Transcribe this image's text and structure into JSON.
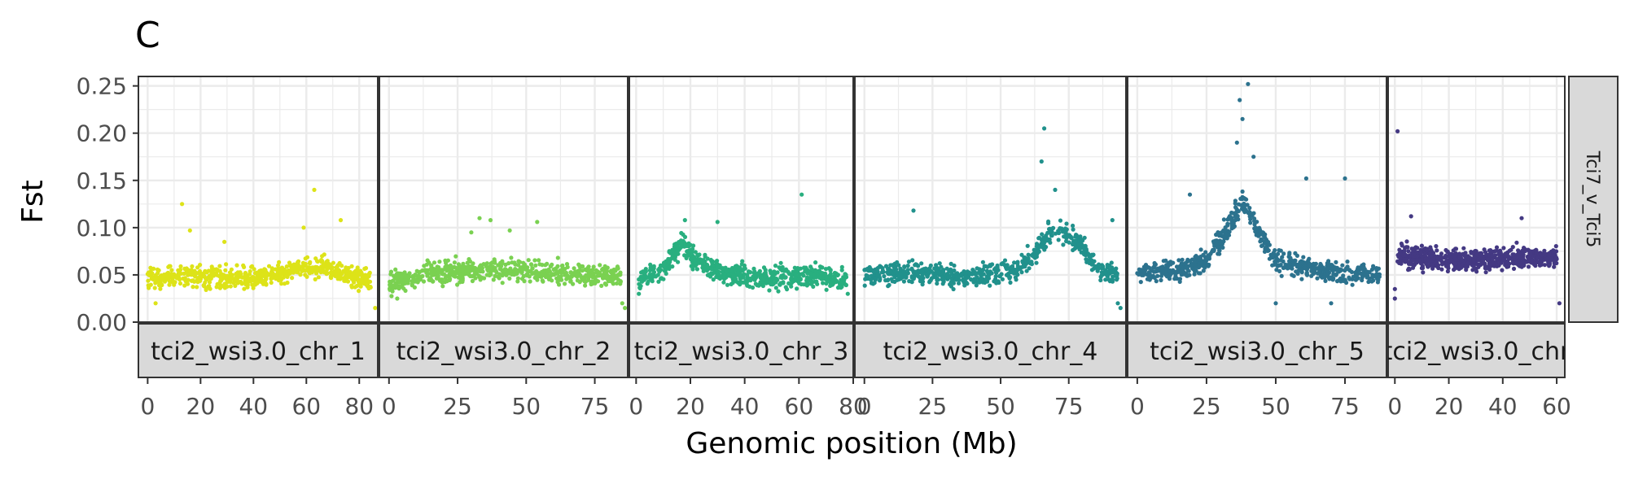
{
  "panel_tag": "C",
  "chart_data": {
    "type": "scatter",
    "xlabel": "Genomic position (Mb)",
    "ylabel": "Fst",
    "ylim": [
      0,
      0.26
    ],
    "yticks": [
      0.0,
      0.05,
      0.1,
      0.15,
      0.2,
      0.25
    ],
    "ytick_labels": [
      "0.00",
      "0.05",
      "0.10",
      "0.15",
      "0.20",
      "0.25"
    ],
    "row_facet_label": "Tci7_v_Tci5",
    "grid": true,
    "legend": "none",
    "facets": [
      {
        "label": "tci2_wsi3.0_chr_1",
        "color": "#dde318",
        "xlim": [
          -3.5,
          87
        ],
        "xticks": [
          0,
          20,
          40,
          60,
          80
        ],
        "ytrend": [
          [
            0,
            0.048
          ],
          [
            20,
            0.047
          ],
          [
            40,
            0.046
          ],
          [
            55,
            0.055
          ],
          [
            65,
            0.06
          ],
          [
            75,
            0.052
          ],
          [
            85,
            0.042
          ]
        ],
        "outliers": [
          [
            13,
            0.125
          ],
          [
            16,
            0.097
          ],
          [
            63,
            0.14
          ],
          [
            59,
            0.1
          ],
          [
            73,
            0.108
          ],
          [
            29,
            0.085
          ],
          [
            3,
            0.02
          ],
          [
            86,
            0.015
          ]
        ]
      },
      {
        "label": "tci2_wsi3.0_chr_2",
        "color": "#7ad151",
        "xlim": [
          -3.5,
          87
        ],
        "xticks": [
          0,
          25,
          50,
          75
        ],
        "ytrend": [
          [
            0,
            0.04
          ],
          [
            15,
            0.052
          ],
          [
            35,
            0.055
          ],
          [
            55,
            0.054
          ],
          [
            75,
            0.05
          ],
          [
            85,
            0.048
          ]
        ],
        "outliers": [
          [
            33,
            0.11
          ],
          [
            37,
            0.108
          ],
          [
            54,
            0.106
          ],
          [
            30,
            0.095
          ],
          [
            44,
            0.097
          ],
          [
            85,
            0.02
          ],
          [
            86,
            0.015
          ],
          [
            3,
            0.025
          ]
        ]
      },
      {
        "label": "tci2_wsi3.0_chr_3",
        "color": "#29af7f",
        "xlim": [
          -2.5,
          80
        ],
        "xticks": [
          0,
          20,
          40,
          60,
          80
        ],
        "ytrend": [
          [
            0,
            0.045
          ],
          [
            10,
            0.055
          ],
          [
            17,
            0.085
          ],
          [
            22,
            0.065
          ],
          [
            35,
            0.05
          ],
          [
            50,
            0.046
          ],
          [
            65,
            0.05
          ],
          [
            77,
            0.045
          ]
        ],
        "outliers": [
          [
            61,
            0.135
          ],
          [
            18,
            0.108
          ],
          [
            30,
            0.106
          ],
          [
            78,
            0.03
          ],
          [
            1,
            0.03
          ]
        ]
      },
      {
        "label": "tci2_wsi3.0_chr_4",
        "color": "#21918c",
        "xlim": [
          -3.5,
          96
        ],
        "xticks": [
          0,
          25,
          50,
          75
        ],
        "ytrend": [
          [
            0,
            0.05
          ],
          [
            20,
            0.052
          ],
          [
            40,
            0.048
          ],
          [
            55,
            0.055
          ],
          [
            62,
            0.07
          ],
          [
            70,
            0.1
          ],
          [
            80,
            0.08
          ],
          [
            85,
            0.058
          ],
          [
            93,
            0.05
          ]
        ],
        "outliers": [
          [
            66,
            0.205
          ],
          [
            65,
            0.17
          ],
          [
            18,
            0.118
          ],
          [
            91,
            0.108
          ],
          [
            93,
            0.02
          ],
          [
            94,
            0.015
          ],
          [
            70,
            0.14
          ]
        ]
      },
      {
        "label": "tci2_wsi3.0_chr_5",
        "color": "#2c728e",
        "xlim": [
          -3.5,
          90
        ],
        "xticks": [
          0,
          25,
          50,
          75
        ],
        "ytrend": [
          [
            0,
            0.052
          ],
          [
            15,
            0.055
          ],
          [
            25,
            0.065
          ],
          [
            32,
            0.095
          ],
          [
            38,
            0.13
          ],
          [
            43,
            0.1
          ],
          [
            50,
            0.065
          ],
          [
            65,
            0.055
          ],
          [
            88,
            0.05
          ]
        ],
        "outliers": [
          [
            40,
            0.252
          ],
          [
            37,
            0.235
          ],
          [
            38,
            0.215
          ],
          [
            61,
            0.152
          ],
          [
            75,
            0.152
          ],
          [
            19,
            0.135
          ],
          [
            36,
            0.19
          ],
          [
            42,
            0.175
          ],
          [
            50,
            0.02
          ],
          [
            70,
            0.02
          ]
        ]
      },
      {
        "label": "tci2_wsi3.0_chr",
        "color": "#443983",
        "xlim": [
          -2.5,
          63
        ],
        "xticks": [
          0,
          20,
          40,
          60
        ],
        "ytrend": [
          [
            0,
            0.07
          ],
          [
            20,
            0.066
          ],
          [
            40,
            0.067
          ],
          [
            62,
            0.068
          ]
        ],
        "outliers": [
          [
            1,
            0.202
          ],
          [
            6,
            0.112
          ],
          [
            47,
            0.11
          ],
          [
            0,
            0.025
          ],
          [
            61,
            0.02
          ],
          [
            0,
            0.035
          ]
        ]
      }
    ]
  }
}
